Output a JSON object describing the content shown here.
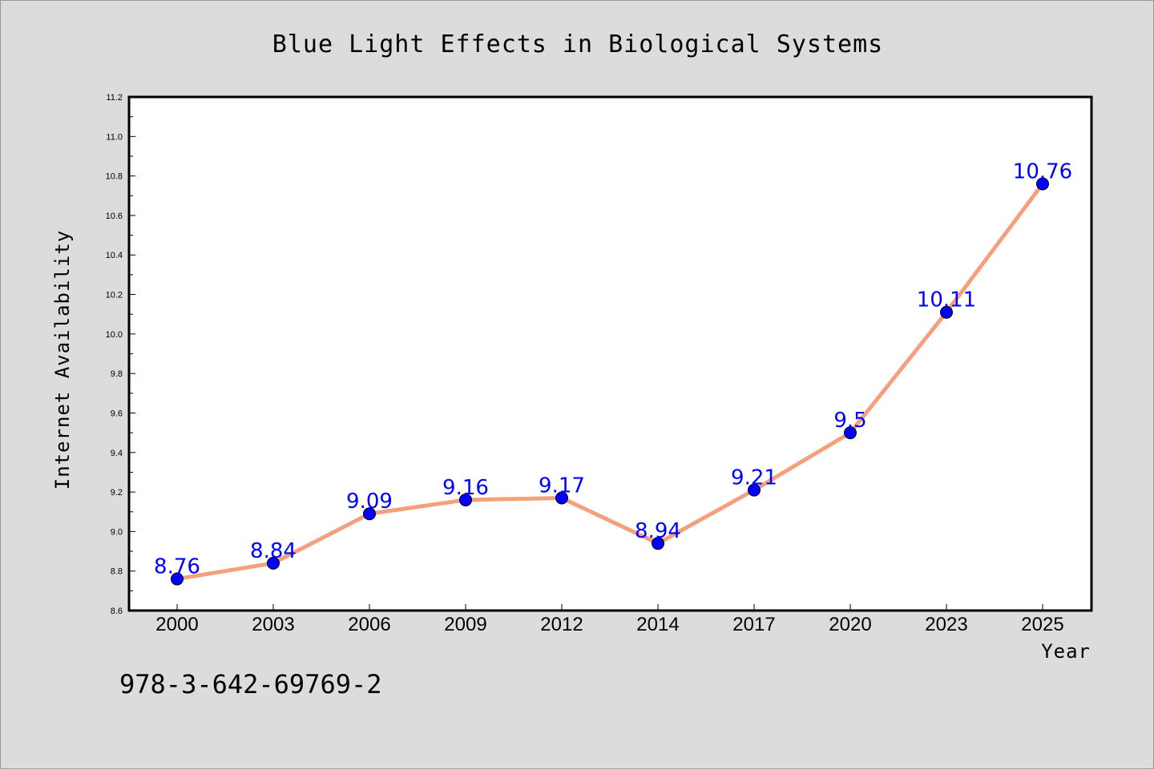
{
  "chart_data": {
    "type": "line",
    "title": "Blue Light Effects in Biological Systems",
    "xlabel": "Year",
    "ylabel": "Internet Availability",
    "categories": [
      "2000",
      "2003",
      "2006",
      "2009",
      "2012",
      "2014",
      "2017",
      "2020",
      "2023",
      "2025"
    ],
    "series": [
      {
        "values": [
          8.76,
          8.84,
          9.09,
          9.16,
          9.17,
          8.94,
          9.21,
          9.5,
          10.11,
          10.76
        ]
      }
    ],
    "data_labels": [
      "8.76",
      "8.84",
      "9.09",
      "9.16",
      "9.17",
      "8.94",
      "9.21",
      "9.5",
      "10.11",
      "10.76"
    ],
    "ylim": [
      8.6,
      11.2
    ],
    "yticks": [
      "8.6",
      "8.8",
      "9.0",
      "9.2",
      "9.4",
      "9.6",
      "9.8",
      "10.0",
      "10.2",
      "10.4",
      "10.6",
      "10.8",
      "11.0",
      "11.2"
    ],
    "grid": false,
    "legend": "none",
    "colors": {
      "line": "#f4a07c",
      "marker": "#0000ff",
      "data_label": "#0000ff",
      "background": "#dcdcdc",
      "plot_background": "#ffffff"
    }
  },
  "footer": {
    "code": "978-3-642-69769-2"
  }
}
